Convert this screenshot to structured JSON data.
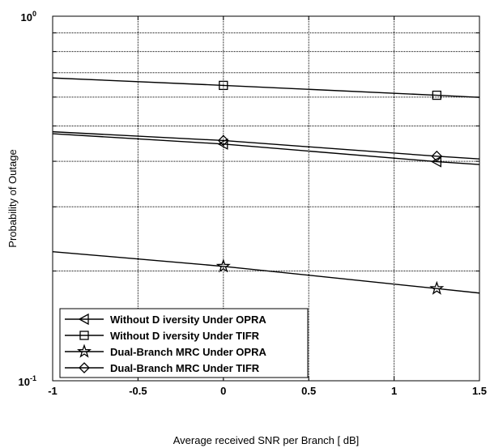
{
  "chart_data": {
    "type": "line",
    "title": "",
    "xlabel": "Average received SNR per Branch [ dB]",
    "ylabel": "Probability of Outage",
    "xlim": [
      -1,
      1.5
    ],
    "ylim": [
      0.1,
      1
    ],
    "y_scale": "log",
    "grid": true,
    "legend_position": "bottom-left",
    "x_ticks": [
      "-1",
      "-0.5",
      "0",
      "0.5",
      "1",
      "1.5"
    ],
    "y_ticks": [
      {
        "base": "10",
        "exp": "-1",
        "value": 0.1
      },
      {
        "base": "10",
        "exp": "0",
        "value": 1
      }
    ],
    "series": [
      {
        "name": "Without D iversity Under OPRA",
        "marker": "triangle-left",
        "x": [
          -1,
          0,
          1.25,
          1.5
        ],
        "values": [
          0.476,
          0.446,
          0.399,
          0.392
        ],
        "marker_x": [
          0,
          1.25
        ]
      },
      {
        "name": "Without D iversity Under TIFR",
        "marker": "square",
        "x": [
          -1,
          0,
          1.25,
          1.5
        ],
        "values": [
          0.677,
          0.646,
          0.607,
          0.599
        ],
        "marker_x": [
          0,
          1.25
        ]
      },
      {
        "name": "Dual-Branch MRC Under OPRA",
        "marker": "star",
        "x": [
          -1,
          0,
          1.25,
          1.5
        ],
        "values": [
          0.226,
          0.206,
          0.179,
          0.174
        ],
        "marker_x": [
          0,
          1.25
        ]
      },
      {
        "name": "Dual-Branch MRC Under TIFR",
        "marker": "diamond",
        "x": [
          -1,
          0,
          1.25,
          1.5
        ],
        "values": [
          0.482,
          0.456,
          0.413,
          0.406
        ],
        "marker_x": [
          0,
          1.25
        ]
      }
    ]
  }
}
